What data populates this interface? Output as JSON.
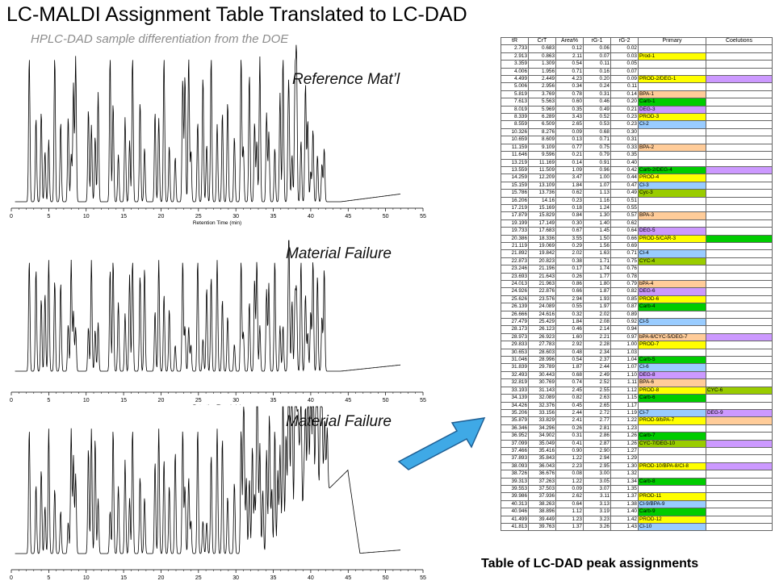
{
  "title": "LC-MALDI Assignment Table Translated to LC-DAD",
  "subtitle": "HPLC-DAD sample differentiation from the DOE",
  "panels": [
    {
      "label": "Reference Mat’l"
    },
    {
      "label": "Material Failure"
    },
    {
      "label": "Material Failure"
    }
  ],
  "chart_data": [
    {
      "type": "line",
      "title": "Reference Mat’l",
      "xlabel": "Retention Time (min)",
      "xlim": [
        0,
        55
      ],
      "xticks": [
        "0",
        "5",
        "10",
        "15",
        "20",
        "25",
        "30",
        "35",
        "40",
        "45",
        "50",
        "55"
      ],
      "series": [
        {
          "peaks_x": [
            2.4,
            3.3,
            4.0,
            4.5,
            5.0,
            5.8,
            6.6,
            7.6,
            8.0,
            8.3,
            8.6,
            10.3,
            10.7,
            11.2,
            11.6,
            13.2,
            13.6,
            14.3,
            15.2,
            15.8,
            16.2,
            17.2,
            17.8,
            19.2,
            19.7,
            20.4,
            21.1,
            21.9,
            22.9,
            23.2,
            23.7,
            24.0,
            24.9,
            25.6,
            26.1,
            26.7,
            27.5,
            28.2,
            28.9,
            29.8,
            30.7,
            31.0,
            31.8,
            32.5,
            32.8,
            33.2,
            34.1,
            34.4,
            35.2,
            35.9,
            36.3,
            37.0,
            37.1,
            37.5,
            37.9,
            38.1,
            38.7,
            39.3,
            39.6,
            40.0,
            40.3,
            40.9,
            41.5,
            41.8
          ]
        }
      ]
    },
    {
      "type": "line",
      "title": "Material Failure",
      "xlabel": "Retention Time (min)",
      "xlim": [
        0,
        55
      ],
      "xticks": [
        "0",
        "5",
        "10",
        "15",
        "20",
        "25",
        "30",
        "35",
        "40",
        "45",
        "50",
        "55"
      ]
    },
    {
      "type": "line",
      "title": "Material Failure",
      "xlabel": "",
      "xlim": [
        0,
        55
      ],
      "xticks": [
        "0",
        "5",
        "10",
        "15",
        "20",
        "25",
        "30",
        "35",
        "40",
        "45",
        "50",
        "55"
      ]
    },
    {
      "type": "table",
      "columns": [
        "tR",
        "CrT",
        "Area%",
        "rG-1",
        "rG-2",
        "Primary",
        "Coelutions"
      ],
      "rows": [
        [
          "2.733",
          "0.683",
          "0.12",
          "0.06",
          "0.02",
          "",
          ""
        ],
        [
          "2.913",
          "0.863",
          "2.11",
          "0.07",
          "0.03",
          "Prod-1",
          ""
        ],
        [
          "3.359",
          "1.309",
          "0.54",
          "0.11",
          "0.05",
          "",
          ""
        ],
        [
          "4.006",
          "1.956",
          "0.71",
          "0.16",
          "0.07",
          "",
          ""
        ],
        [
          "4.499",
          "2.449",
          "4.23",
          "0.20",
          "0.09",
          "PROD-2/DEG-1",
          ""
        ],
        [
          "5.006",
          "2.956",
          "0.34",
          "0.24",
          "0.11",
          "",
          ""
        ],
        [
          "5.819",
          "3.769",
          "0.78",
          "0.31",
          "0.14",
          "BPA-1",
          ""
        ],
        [
          "7.613",
          "5.563",
          "0.60",
          "0.46",
          "0.20",
          "Carb-1",
          ""
        ],
        [
          "8.019",
          "5.969",
          "0.35",
          "0.49",
          "0.21",
          "DEG-3",
          ""
        ],
        [
          "8.339",
          "6.289",
          "3.43",
          "0.52",
          "0.23",
          "PROD-3",
          ""
        ],
        [
          "8.559",
          "6.509",
          "2.65",
          "0.53",
          "0.23",
          "Cl-2",
          ""
        ],
        [
          "10.326",
          "8.276",
          "0.09",
          "0.68",
          "0.30",
          "",
          ""
        ],
        [
          "10.659",
          "8.609",
          "0.13",
          "0.71",
          "0.31",
          "",
          ""
        ],
        [
          "11.159",
          "9.109",
          "0.77",
          "0.75",
          "0.33",
          "BPA-2",
          ""
        ],
        [
          "11.646",
          "9.596",
          "0.21",
          "0.79",
          "0.35",
          "",
          ""
        ],
        [
          "13.219",
          "11.169",
          "0.14",
          "0.91",
          "0.40",
          "",
          ""
        ],
        [
          "13.559",
          "11.509",
          "1.09",
          "0.96",
          "0.42",
          "Carb-2/DEG-4",
          ""
        ],
        [
          "14.259",
          "12.209",
          "3.47",
          "1.00",
          "0.44",
          "PROD-4",
          ""
        ],
        [
          "15.159",
          "13.109",
          "1.84",
          "1.07",
          "0.47",
          "Cl-3",
          ""
        ],
        [
          "15.786",
          "13.736",
          "0.62",
          "1.13",
          "0.49",
          "Cyc-3",
          ""
        ],
        [
          "16.206",
          "14.16",
          "0.23",
          "1.16",
          "0.51",
          "",
          ""
        ],
        [
          "17.219",
          "15.169",
          "0.18",
          "1.24",
          "0.55",
          "",
          ""
        ],
        [
          "17.879",
          "15.829",
          "0.84",
          "1.30",
          "0.57",
          "BPA-3",
          ""
        ],
        [
          "19.199",
          "17.149",
          "0.30",
          "1.40",
          "0.62",
          "",
          ""
        ],
        [
          "19.733",
          "17.683",
          "0.67",
          "1.45",
          "0.64",
          "DEG-5",
          ""
        ],
        [
          "20.386",
          "18.336",
          "3.55",
          "1.50",
          "0.66",
          "PROD-5/CAR-3",
          ""
        ],
        [
          "21.119",
          "19.069",
          "0.29",
          "1.56",
          "0.69",
          "",
          ""
        ],
        [
          "21.892",
          "19.842",
          "2.02",
          "1.63",
          "0.71",
          "Cl-4",
          ""
        ],
        [
          "22.873",
          "20.823",
          "0.38",
          "1.71",
          "0.75",
          "CYC-4",
          ""
        ],
        [
          "23.246",
          "21.196",
          "0.17",
          "1.74",
          "0.76",
          "",
          ""
        ],
        [
          "23.693",
          "21.643",
          "0.26",
          "1.77",
          "0.78",
          "",
          ""
        ],
        [
          "24.013",
          "21.963",
          "0.86",
          "1.80",
          "0.79",
          "bPA-4",
          ""
        ],
        [
          "24.926",
          "22.876",
          "0.66",
          "1.87",
          "0.82",
          "DEG-6",
          ""
        ],
        [
          "25.626",
          "23.576",
          "2.94",
          "1.93",
          "0.85",
          "PROD-6",
          ""
        ],
        [
          "26.139",
          "24.089",
          "0.55",
          "1.97",
          "0.87",
          "Carb-4",
          ""
        ],
        [
          "26.666",
          "24.616",
          "0.32",
          "2.02",
          "0.89",
          "",
          ""
        ],
        [
          "27.479",
          "25.429",
          "1.84",
          "2.08",
          "0.92",
          "Cl-5",
          ""
        ],
        [
          "28.173",
          "26.123",
          "0.46",
          "2.14",
          "0.94",
          "",
          ""
        ],
        [
          "28.973",
          "26.923",
          "1.60",
          "2.21",
          "0.97",
          "bPA-6/CYC-5/DEG-7",
          ""
        ],
        [
          "29.833",
          "27.783",
          "2.92",
          "2.28",
          "1.00",
          "PROD-7",
          ""
        ],
        [
          "30.653",
          "28.603",
          "0.48",
          "2.34",
          "1.03",
          "",
          ""
        ],
        [
          "31.046",
          "28.996",
          "0.54",
          "2.37",
          "1.04",
          "Carb-5",
          ""
        ],
        [
          "31.839",
          "29.789",
          "1.87",
          "2.44",
          "1.07",
          "Cl-6",
          ""
        ],
        [
          "32.493",
          "30.443",
          "0.68",
          "2.49",
          "1.10",
          "DEG-8",
          ""
        ],
        [
          "32.819",
          "30.769",
          "0.74",
          "2.52",
          "1.11",
          "BPA-6",
          ""
        ],
        [
          "33.193",
          "31.143",
          "2.45",
          "2.55",
          "1.12",
          "PROD-8",
          "CYC-6"
        ],
        [
          "34.139",
          "32.089",
          "0.82",
          "2.63",
          "1.15",
          "Carb-6",
          ""
        ],
        [
          "34.426",
          "32.376",
          "0.45",
          "2.65",
          "1.17",
          "",
          ""
        ],
        [
          "35.206",
          "33.156",
          "2.44",
          "2.72",
          "1.19",
          "Cl-7",
          "DEG-9"
        ],
        [
          "35.879",
          "33.829",
          "2.41",
          "2.77",
          "1.22",
          "PROD-9/bPA-7",
          ""
        ],
        [
          "36.346",
          "34.296",
          "0.26",
          "2.81",
          "1.23",
          "",
          ""
        ],
        [
          "36.952",
          "34.902",
          "0.31",
          "2.86",
          "1.26",
          "Carb-7",
          ""
        ],
        [
          "37.099",
          "35.049",
          "0.41",
          "2.87",
          "1.26",
          "CYC-7/DEG-10",
          ""
        ],
        [
          "37.466",
          "35.416",
          "0.90",
          "2.90",
          "1.27",
          "",
          ""
        ],
        [
          "37.893",
          "35.843",
          "1.22",
          "2.94",
          "1.29",
          "",
          ""
        ],
        [
          "38.093",
          "36.043",
          "2.23",
          "2.95",
          "1.30",
          "PROD-10/BPA-8/Cl-8",
          ""
        ],
        [
          "38.726",
          "36.676",
          "0.08",
          "3.00",
          "1.32",
          "",
          ""
        ],
        [
          "39.313",
          "37.263",
          "1.22",
          "3.05",
          "1.34",
          "Carb-8",
          ""
        ],
        [
          "39.553",
          "37.503",
          "0.09",
          "3.07",
          "1.35",
          "",
          ""
        ],
        [
          "39.986",
          "37.936",
          "2.62",
          "3.11",
          "1.37",
          "PROD-11",
          ""
        ],
        [
          "40.313",
          "38.263",
          "0.64",
          "3.13",
          "1.38",
          "Cl-9/BPA-9",
          ""
        ],
        [
          "40.946",
          "38.896",
          "1.12",
          "3.19",
          "1.40",
          "Carb-9",
          ""
        ],
        [
          "41.499",
          "39.449",
          "1.23",
          "3.23",
          "1.42",
          "PROD-12",
          ""
        ],
        [
          "41.813",
          "39.763",
          "1.37",
          "3.26",
          "1.43",
          "Cl-10",
          ""
        ]
      ],
      "primary_colors": {
        "Prod-1": "#ffff00",
        "PROD-2/DEG-1": "#ffff00",
        "BPA-1": "#ffcc99",
        "Carb-1": "#00cc00",
        "DEG-3": "#cc99ff",
        "PROD-3": "#ffff00",
        "Cl-2": "#99ccff",
        "BPA-2": "#ffcc99",
        "Carb-2/DEG-4": "#00cc00",
        "PROD-4": "#ffff00",
        "Cl-3": "#99ccff",
        "Cyc-3": "#99cc00",
        "BPA-3": "#ffcc99",
        "DEG-5": "#cc99ff",
        "PROD-5/CAR-3": "#ffff00",
        "Cl-4": "#99ccff",
        "CYC-4": "#99cc00",
        "bPA-4": "#ffcc99",
        "DEG-6": "#cc99ff",
        "PROD-6": "#ffff00",
        "Carb-4": "#00cc00",
        "Cl-5": "#99ccff",
        "bPA-6/CYC-5/DEG-7": "#ffcc99",
        "PROD-7": "#ffff00",
        "Carb-5": "#00cc00",
        "Cl-6": "#99ccff",
        "DEG-8": "#cc99ff",
        "BPA-6": "#ffcc99",
        "PROD-8": "#ffff00",
        "Carb-6": "#00cc00",
        "Cl-7": "#99ccff",
        "PROD-9/bPA-7": "#ffff00",
        "Carb-7": "#00cc00",
        "CYC-7/DEG-10": "#99cc00",
        "PROD-10/BPA-8/Cl-8": "#ffff00",
        "Carb-8": "#00cc00",
        "PROD-11": "#ffff00",
        "Cl-9/BPA-9": "#99ccff",
        "Carb-9": "#00cc00",
        "PROD-12": "#ffff00",
        "Cl-10": "#99ccff"
      },
      "coelution_colors": {
        "PROD-2/DEG-1": "#cc99ff",
        "Carb-2/DEG-4": "#cc99ff",
        "PROD-5/CAR-3": "#00cc00",
        "bPA-6/CYC-5/DEG-7": "#cc99ff",
        "PROD-9/bPA-7": "#ffcc99",
        "CYC-7/DEG-10": "#cc99ff",
        "PROD-10/BPA-8/Cl-8": "#cc99ff"
      },
      "coelution_cell_colors": {
        "CYC-6": "#99cc00",
        "DEG-9": "#cc99ff"
      }
    }
  ],
  "caption": "Table of LC-DAD peak assignments",
  "arrow_color": "#3fa9e6"
}
